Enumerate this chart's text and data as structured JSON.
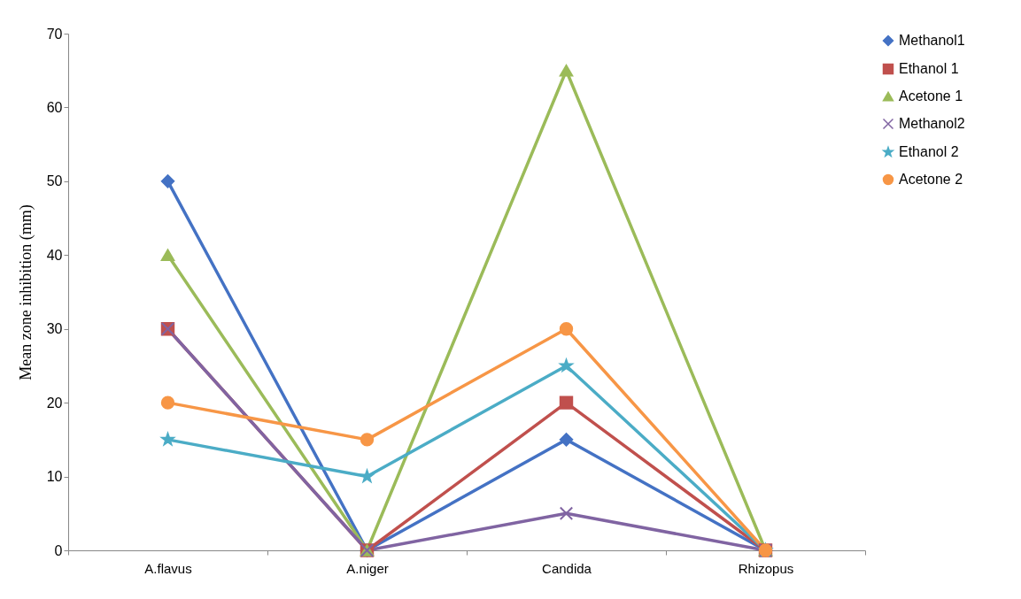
{
  "chart_data": {
    "type": "line",
    "ylabel": "Mean zone inhibition (mm)",
    "categories": [
      "A.flavus",
      "A.niger",
      "Candida",
      "Rhizopus"
    ],
    "ylim": [
      0,
      70
    ],
    "yticks": [
      0,
      10,
      20,
      30,
      40,
      50,
      60,
      70
    ],
    "grid": false,
    "legend": "right",
    "series": [
      {
        "name": "Methanol1",
        "color": "#4472c4",
        "marker": "diamond",
        "values": [
          50,
          0,
          15,
          0
        ]
      },
      {
        "name": "Ethanol 1",
        "color": "#c0504d",
        "marker": "square",
        "values": [
          30,
          0,
          20,
          0
        ]
      },
      {
        "name": "Acetone 1",
        "color": "#9bbb59",
        "marker": "triangle",
        "values": [
          40,
          0,
          65,
          0
        ]
      },
      {
        "name": "Methanol2",
        "color": "#8064a2",
        "marker": "cross",
        "values": [
          30,
          0,
          5,
          0
        ]
      },
      {
        "name": "Ethanol 2",
        "color": "#4bacc6",
        "marker": "star",
        "values": [
          15,
          10,
          25,
          0
        ]
      },
      {
        "name": "Acetone 2",
        "color": "#f79646",
        "marker": "circle",
        "values": [
          20,
          15,
          30,
          0
        ]
      }
    ]
  }
}
